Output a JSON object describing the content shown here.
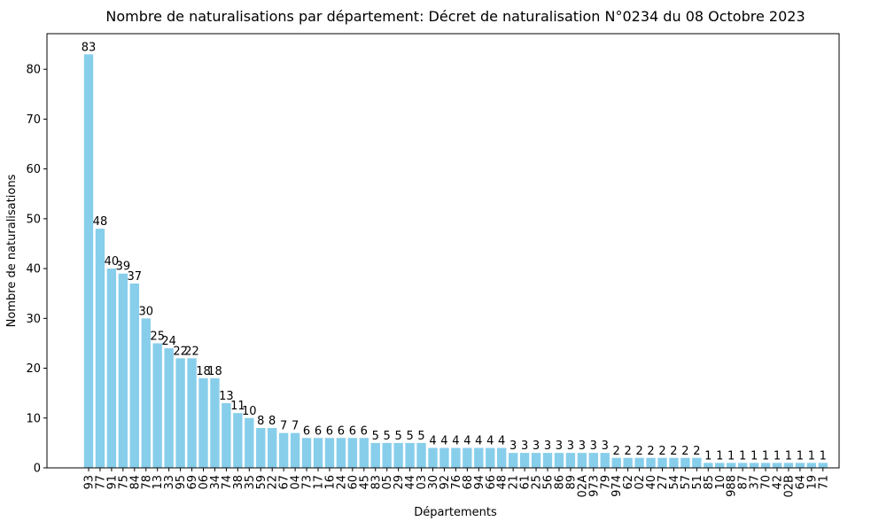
{
  "chart_data": {
    "type": "bar",
    "title": "Nombre de naturalisations par département: Décret de naturalisation N°0234 du 08 Octobre 2023",
    "x_label": "Départements",
    "y_label": "Nombre de naturalisations",
    "categories": [
      "93",
      "77",
      "91",
      "75",
      "84",
      "78",
      "13",
      "33",
      "95",
      "69",
      "06",
      "34",
      "74",
      "38",
      "35",
      "59",
      "22",
      "67",
      "04",
      "73",
      "17",
      "16",
      "24",
      "60",
      "45",
      "83",
      "05",
      "29",
      "44",
      "03",
      "30",
      "92",
      "76",
      "68",
      "94",
      "66",
      "48",
      "21",
      "61",
      "25",
      "56",
      "86",
      "89",
      "02A",
      "973",
      "79",
      "974",
      "62",
      "02",
      "40",
      "27",
      "54",
      "57",
      "51",
      "85",
      "10",
      "988",
      "87",
      "37",
      "70",
      "42",
      "02B",
      "64",
      "19",
      "71"
    ],
    "values": [
      83,
      48,
      40,
      39,
      37,
      30,
      25,
      24,
      22,
      22,
      18,
      18,
      13,
      11,
      10,
      8,
      8,
      7,
      7,
      6,
      6,
      6,
      6,
      6,
      6,
      5,
      5,
      5,
      5,
      5,
      4,
      4,
      4,
      4,
      4,
      4,
      4,
      3,
      3,
      3,
      3,
      3,
      3,
      3,
      3,
      3,
      2,
      2,
      2,
      2,
      2,
      2,
      2,
      2,
      1,
      1,
      1,
      1,
      1,
      1,
      1,
      1,
      1,
      1,
      1
    ],
    "color": "#87ceeb",
    "ylim": [
      0,
      87.15
    ],
    "yticks": [
      0,
      10,
      20,
      30,
      40,
      50,
      60,
      70,
      80
    ],
    "grid": false
  }
}
